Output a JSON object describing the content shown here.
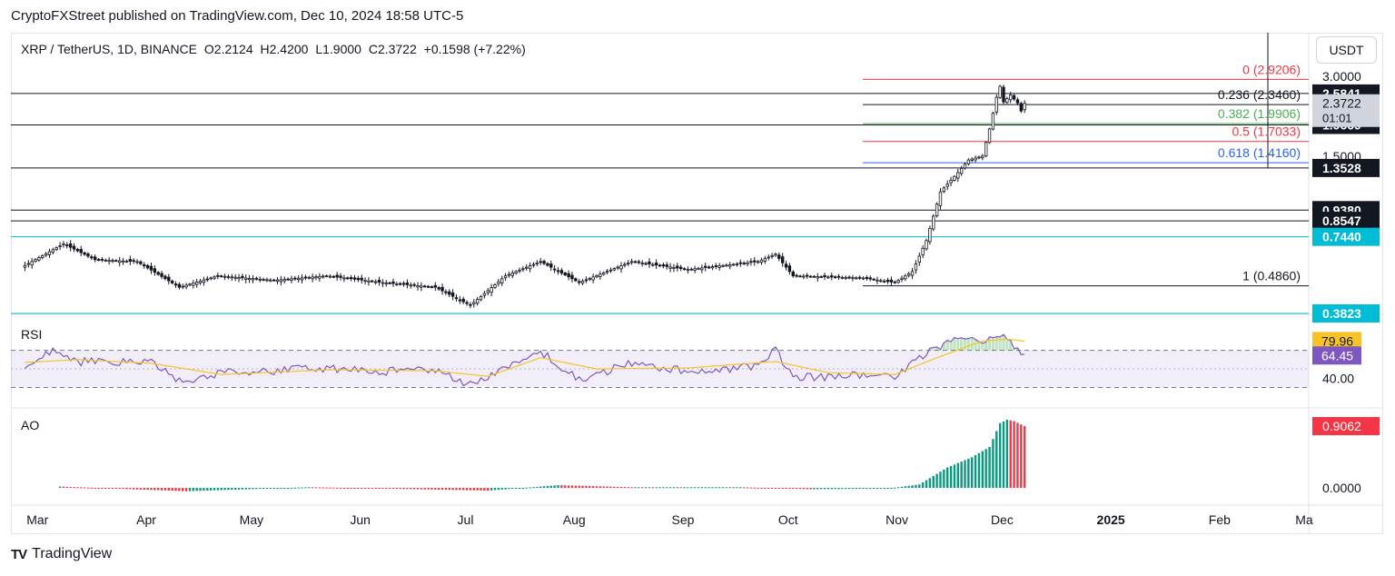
{
  "header": {
    "publisher_line": "CryptoFXStreet published on TradingView.com, Dec 10, 2024 18:58 UTC-5"
  },
  "legend": {
    "symbol": "XRP / TetherUS, 1D, BINANCE",
    "open": "O2.2124",
    "high": "H2.4200",
    "low": "L1.9000",
    "close": "C2.3722",
    "change": "+0.1598 (+7.22%)"
  },
  "currency_button": "USDT",
  "panes": {
    "rsi_label": "RSI",
    "ao_label": "AO"
  },
  "footer": {
    "brand": "TradingView",
    "logo_mark": "TV"
  },
  "colors": {
    "up": "#089981",
    "down": "#f23645",
    "rsi_line": "#7e57c2",
    "rsi_ma": "#f7c325",
    "fib_red": "#f23645",
    "fib_green": "#4caf50",
    "fib_blue": "#2962ff",
    "cyan": "#00bcd4"
  },
  "chart_data": [
    {
      "type": "candlestick",
      "title": "XRP / TetherUS, 1D, BINANCE",
      "x_ticks": [
        "Mar",
        "Apr",
        "May",
        "Jun",
        "Jul",
        "Aug",
        "Sep",
        "Oct",
        "Nov",
        "Dec",
        "2025",
        "Feb",
        "Ma"
      ],
      "y_scale": "log",
      "y_ticks": [
        "3.0000",
        "1.5000"
      ],
      "price_series": [
        {
          "date": "2024-02-29",
          "close": 0.58
        },
        {
          "date": "2024-03-11",
          "close": 0.7
        },
        {
          "date": "2024-03-20",
          "close": 0.61
        },
        {
          "date": "2024-04-01",
          "close": 0.6
        },
        {
          "date": "2024-04-13",
          "close": 0.48
        },
        {
          "date": "2024-04-24",
          "close": 0.53
        },
        {
          "date": "2024-05-10",
          "close": 0.51
        },
        {
          "date": "2024-05-25",
          "close": 0.53
        },
        {
          "date": "2024-06-10",
          "close": 0.5
        },
        {
          "date": "2024-06-25",
          "close": 0.48
        },
        {
          "date": "2024-07-05",
          "close": 0.41
        },
        {
          "date": "2024-07-15",
          "close": 0.53
        },
        {
          "date": "2024-07-25",
          "close": 0.6
        },
        {
          "date": "2024-08-05",
          "close": 0.5
        },
        {
          "date": "2024-08-20",
          "close": 0.6
        },
        {
          "date": "2024-09-05",
          "close": 0.56
        },
        {
          "date": "2024-09-25",
          "close": 0.6
        },
        {
          "date": "2024-09-30",
          "close": 0.64
        },
        {
          "date": "2024-10-05",
          "close": 0.53
        },
        {
          "date": "2024-10-25",
          "close": 0.52
        },
        {
          "date": "2024-11-03",
          "close": 0.5
        },
        {
          "date": "2024-11-08",
          "close": 0.55
        },
        {
          "date": "2024-11-12",
          "close": 0.72
        },
        {
          "date": "2024-11-16",
          "close": 1.1
        },
        {
          "date": "2024-11-21",
          "close": 1.3
        },
        {
          "date": "2024-11-24",
          "close": 1.45
        },
        {
          "date": "2024-11-28",
          "close": 1.5
        },
        {
          "date": "2024-11-30",
          "close": 1.9
        },
        {
          "date": "2024-12-02",
          "close": 2.5
        },
        {
          "date": "2024-12-03",
          "close": 2.75
        },
        {
          "date": "2024-12-04",
          "close": 2.4
        },
        {
          "date": "2024-12-06",
          "close": 2.55
        },
        {
          "date": "2024-12-08",
          "close": 2.38
        },
        {
          "date": "2024-12-09",
          "close": 2.22
        },
        {
          "date": "2024-12-10",
          "close": 2.3722
        }
      ],
      "horizontal_levels": [
        {
          "value": 2.5841,
          "label": "2.5841",
          "color": "#131722"
        },
        {
          "value": 1.9669,
          "label": "1.9669",
          "color": "#131722"
        },
        {
          "value": 1.3528,
          "label": "1.3528",
          "color": "#131722"
        },
        {
          "value": 0.938,
          "label": "0.9380",
          "color": "#131722"
        },
        {
          "value": 0.8547,
          "label": "0.8547",
          "color": "#131722"
        },
        {
          "value": 0.744,
          "label": "0.7440",
          "color": "#00bcd4"
        },
        {
          "value": 0.3823,
          "label": "0.3823",
          "color": "#00bcd4"
        }
      ],
      "fibonacci": [
        {
          "level": "0",
          "price": 2.9206,
          "label": "0 (2.9206)",
          "color": "#f23645"
        },
        {
          "level": "0.236",
          "price": 2.346,
          "label": "0.236 (2.3460)",
          "color": "#131722"
        },
        {
          "level": "0.382",
          "price": 1.9906,
          "label": "0.382 (1.9906)",
          "color": "#4caf50"
        },
        {
          "level": "0.5",
          "price": 1.7033,
          "label": "0.5 (1.7033)",
          "color": "#f23645"
        },
        {
          "level": "0.618",
          "price": 1.416,
          "label": "0.618 (1.4160)",
          "color": "#2962ff"
        },
        {
          "level": "1",
          "price": 0.486,
          "label": "1 (0.4860)",
          "color": "#131722"
        }
      ],
      "last_price": {
        "value": "2.3722",
        "countdown": "01:01"
      }
    },
    {
      "type": "line",
      "title": "RSI",
      "y_ticks": [
        "40.00"
      ],
      "band": [
        30,
        70
      ],
      "series": [
        {
          "name": "RSI",
          "value_label": "64.45",
          "x": [
            "2024-02-29",
            "2024-03-08",
            "2024-03-15",
            "2024-03-25",
            "2024-04-05",
            "2024-04-14",
            "2024-04-25",
            "2024-05-10",
            "2024-05-25",
            "2024-06-10",
            "2024-06-25",
            "2024-07-05",
            "2024-07-15",
            "2024-07-25",
            "2024-08-05",
            "2024-08-20",
            "2024-09-05",
            "2024-09-25",
            "2024-09-30",
            "2024-10-05",
            "2024-10-25",
            "2024-11-03",
            "2024-11-12",
            "2024-11-20",
            "2024-11-28",
            "2024-12-03",
            "2024-12-07",
            "2024-12-10"
          ],
          "y": [
            55,
            70,
            58,
            57,
            56,
            34,
            46,
            48,
            51,
            47,
            50,
            33,
            52,
            69,
            38,
            57,
            47,
            53,
            70,
            40,
            44,
            41,
            67,
            84,
            80,
            87,
            76,
            64.45
          ]
        },
        {
          "name": "RSI-based MA",
          "value_label": "79.96",
          "x": [
            "2024-02-29",
            "2024-03-15",
            "2024-04-05",
            "2024-04-25",
            "2024-05-25",
            "2024-06-25",
            "2024-07-10",
            "2024-07-25",
            "2024-08-10",
            "2024-09-05",
            "2024-09-30",
            "2024-10-15",
            "2024-11-03",
            "2024-11-15",
            "2024-11-28",
            "2024-12-05",
            "2024-12-10"
          ],
          "y": [
            57,
            60,
            56,
            44,
            49,
            48,
            42,
            62,
            50,
            51,
            58,
            46,
            44,
            62,
            80,
            82,
            79.96
          ]
        }
      ]
    },
    {
      "type": "bar",
      "title": "AO",
      "y_ticks": [
        "0.0000"
      ],
      "value_label": "0.9062",
      "series": [
        {
          "name": "AO",
          "x": [
            "2024-03-10",
            "2024-04-15",
            "2024-05-20",
            "2024-06-20",
            "2024-07-10",
            "2024-07-30",
            "2024-08-20",
            "2024-09-20",
            "2024-10-10",
            "2024-11-01",
            "2024-11-10",
            "2024-11-18",
            "2024-11-25",
            "2024-11-30",
            "2024-12-03",
            "2024-12-05",
            "2024-12-07",
            "2024-12-10"
          ],
          "y": [
            0.02,
            -0.05,
            0.01,
            -0.02,
            -0.04,
            0.04,
            0.01,
            0.01,
            -0.02,
            -0.01,
            0.05,
            0.3,
            0.45,
            0.6,
            0.95,
            1.0,
            0.98,
            0.9062
          ]
        }
      ]
    }
  ]
}
